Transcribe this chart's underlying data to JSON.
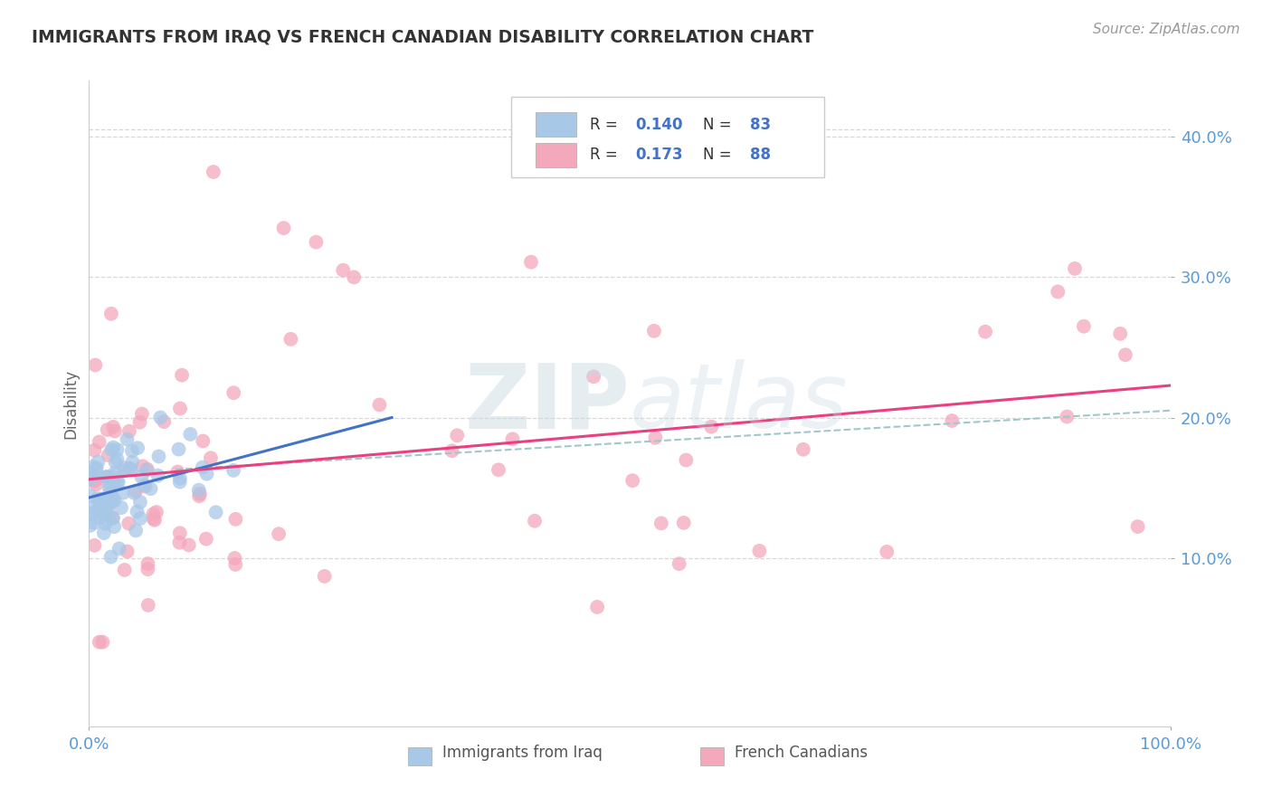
{
  "title": "IMMIGRANTS FROM IRAQ VS FRENCH CANADIAN DISABILITY CORRELATION CHART",
  "source": "Source: ZipAtlas.com",
  "ylabel": "Disability",
  "watermark": "ZIPatlas",
  "x_min": 0.0,
  "x_max": 1.0,
  "y_min": -0.02,
  "y_max": 0.44,
  "x_tick_labels": [
    "0.0%",
    "100.0%"
  ],
  "x_tick_positions": [
    0.0,
    1.0
  ],
  "y_tick_labels": [
    "10.0%",
    "20.0%",
    "30.0%",
    "40.0%"
  ],
  "y_tick_values": [
    0.1,
    0.2,
    0.3,
    0.4
  ],
  "legend_r1": "0.140",
  "legend_n1": "83",
  "legend_r2": "0.173",
  "legend_n2": "88",
  "color_blue": "#a8c8e8",
  "color_pink": "#f4a8bc",
  "color_blue_line": "#4472c4",
  "color_pink_line": "#e84080",
  "color_dashed_line": "#a0c8c8",
  "title_color": "#333333",
  "source_color": "#999999",
  "axis_label_color": "#5b9bd5",
  "legend_rv_color": "#4472c4",
  "legend_nv_color": "#4472c4",
  "background_color": "#ffffff",
  "grid_color": "#d8d8d8"
}
